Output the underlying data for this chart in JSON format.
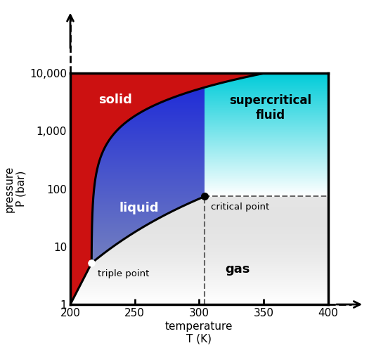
{
  "xmin": 200,
  "xmax": 400,
  "ymin": 1,
  "ymax": 10000,
  "triple_T": 216.5,
  "triple_P": 5.18,
  "crit_T": 304.1,
  "crit_P": 73.8,
  "xlabel_line1": "temperature",
  "xlabel_line2": "T (K)",
  "ylabel_line1": "pressure",
  "ylabel_line2": "P (bar)",
  "xticks": [
    200,
    250,
    300,
    350,
    400
  ],
  "yticks": [
    1,
    10,
    100,
    1000,
    10000
  ],
  "ytick_labels": [
    "1",
    "10",
    "100",
    "1,000",
    "10,000"
  ],
  "figsize": [
    5.25,
    4.95
  ],
  "dpi": 100,
  "solid_color": "#cc1111",
  "liquid_color_dark": "#2244dd",
  "liquid_color_light": "#6688ff",
  "gas_color_dark": "#999999",
  "gas_color_light": "#ffffff",
  "sc_color_dark": "#00ccdd",
  "sc_color_light": "#e0fafa",
  "label_solid": "solid",
  "label_liquid": "liquid",
  "label_gas": "gas",
  "label_sc": "supercritical\nfluid",
  "label_triple": "triple point",
  "label_crit": "critical point"
}
